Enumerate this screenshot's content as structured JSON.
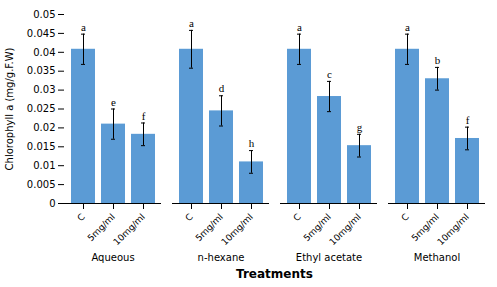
{
  "chart_data": {
    "type": "bar",
    "xlabel": "Treatments",
    "ylabel": "Chlorophyll a (mg/g.F.W)",
    "categories": [
      "Aqueous",
      "n-hexane",
      "Ethyl acetate",
      "Methanol"
    ],
    "series": [
      {
        "name": "C",
        "values": [
          0.0408,
          0.0408,
          0.0408,
          0.0408
        ],
        "errors": [
          0.004,
          0.005,
          0.004,
          0.004
        ],
        "labels": [
          "a",
          "a",
          "a",
          "a"
        ]
      },
      {
        "name": "5mg/ml",
        "values": [
          0.021,
          0.0245,
          0.0283,
          0.033
        ],
        "errors": [
          0.004,
          0.004,
          0.004,
          0.003
        ],
        "labels": [
          "e",
          "d",
          "c",
          "b"
        ]
      },
      {
        "name": "10mg/ml",
        "values": [
          0.0183,
          0.011,
          0.0153,
          0.0172
        ],
        "errors": [
          0.003,
          0.003,
          0.003,
          0.003
        ],
        "labels": [
          "f",
          "h",
          "g",
          "f"
        ]
      }
    ],
    "color": "#5B9BD5",
    "ylim": [
      0,
      0.05
    ],
    "yticks": [
      0,
      0.005,
      0.01,
      0.015,
      0.02,
      0.025,
      0.03,
      0.035,
      0.04,
      0.045,
      0.05
    ],
    "grid": false
  }
}
